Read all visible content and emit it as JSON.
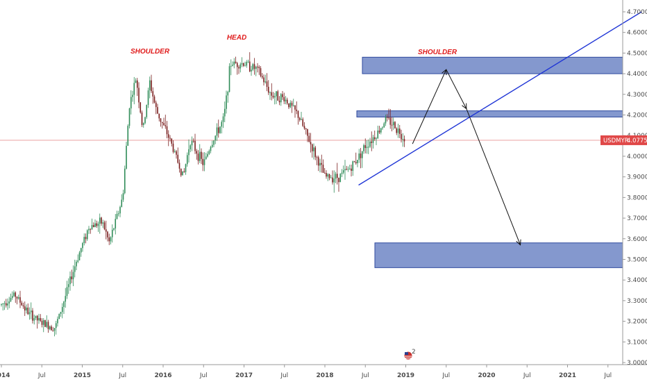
{
  "instrument": "USDMYR",
  "chart_data": {
    "type": "candlestick",
    "title": "",
    "xlabel": "",
    "ylabel": "",
    "ylim": [
      3.0,
      4.7
    ],
    "y_ticks": [
      "3.0000",
      "3.1000",
      "3.2000",
      "3.3000",
      "3.4000",
      "3.5000",
      "3.6000",
      "3.7000",
      "3.8000",
      "3.9000",
      "4.0000",
      "4.1000",
      "4.2000",
      "4.3000",
      "4.4000",
      "4.5000",
      "4.6000",
      "4.7000"
    ],
    "x_ticks": [
      {
        "label": "2014",
        "major": true
      },
      {
        "label": "Jul",
        "major": false
      },
      {
        "label": "2015",
        "major": true
      },
      {
        "label": "Jul",
        "major": false
      },
      {
        "label": "2016",
        "major": true
      },
      {
        "label": "Jul",
        "major": false
      },
      {
        "label": "2017",
        "major": true
      },
      {
        "label": "Jul",
        "major": false
      },
      {
        "label": "2018",
        "major": true
      },
      {
        "label": "Jul",
        "major": false
      },
      {
        "label": "2019",
        "major": true
      },
      {
        "label": "Jul",
        "major": false
      },
      {
        "label": "2020",
        "major": true
      },
      {
        "label": "Jul",
        "major": false
      },
      {
        "label": "2021",
        "major": true
      },
      {
        "label": "Jul",
        "major": false
      }
    ],
    "last_price": {
      "label": "USDMYR",
      "value": "4.0775"
    },
    "price_path": [
      [
        "2014-01",
        3.28
      ],
      [
        "2014-03",
        3.33
      ],
      [
        "2014-05",
        3.24
      ],
      [
        "2014-07",
        3.19
      ],
      [
        "2014-09",
        3.17
      ],
      [
        "2014-10",
        3.27
      ],
      [
        "2014-12",
        3.48
      ],
      [
        "2015-02",
        3.66
      ],
      [
        "2015-04",
        3.68
      ],
      [
        "2015-05",
        3.58
      ],
      [
        "2015-07",
        3.8
      ],
      [
        "2015-08",
        4.25
      ],
      [
        "2015-09",
        4.38
      ],
      [
        "2015-10",
        4.12
      ],
      [
        "2015-11",
        4.36
      ],
      [
        "2015-12",
        4.22
      ],
      [
        "2016-02",
        4.08
      ],
      [
        "2016-04",
        3.9
      ],
      [
        "2016-05",
        4.08
      ],
      [
        "2016-07",
        3.96
      ],
      [
        "2016-08",
        4.05
      ],
      [
        "2016-10",
        4.18
      ],
      [
        "2016-11",
        4.45
      ],
      [
        "2017-01",
        4.45
      ],
      [
        "2017-03",
        4.42
      ],
      [
        "2017-05",
        4.3
      ],
      [
        "2017-07",
        4.28
      ],
      [
        "2017-09",
        4.2
      ],
      [
        "2017-11",
        4.05
      ],
      [
        "2018-01",
        3.9
      ],
      [
        "2018-03",
        3.9
      ],
      [
        "2018-05",
        3.95
      ],
      [
        "2018-07",
        4.05
      ],
      [
        "2018-09",
        4.12
      ],
      [
        "2018-10",
        4.18
      ],
      [
        "2018-11",
        4.16
      ],
      [
        "2019-01",
        4.08
      ]
    ],
    "annotations": [
      {
        "text": "SHOULDER",
        "color": "#e01b1b"
      },
      {
        "text": "HEAD",
        "color": "#e01b1b"
      },
      {
        "text": "SHOULDER",
        "color": "#e01b1b"
      }
    ],
    "zones": [
      {
        "name": "upper-resistance-zone",
        "y_low": 4.4,
        "y_high": 4.48,
        "x_start": "2018-07",
        "x_end": "2021-12",
        "color": "#6f86c6"
      },
      {
        "name": "middle-resistance-zone",
        "y_low": 4.19,
        "y_high": 4.22,
        "x_start": "2018-07",
        "x_end": "2021-12",
        "color": "#6f86c6"
      },
      {
        "name": "target-support-zone",
        "y_low": 3.46,
        "y_high": 3.58,
        "x_start": "2018-12",
        "x_end": "2021-12",
        "color": "#6f86c6"
      }
    ],
    "trendline": {
      "from": [
        "2018-06",
        3.86
      ],
      "to": [
        "2021-12",
        4.7
      ],
      "color": "#1f35d6"
    },
    "projection_path": [
      [
        "2019-02",
        4.06
      ],
      [
        "2019-07",
        4.42
      ],
      [
        "2019-10",
        4.23
      ],
      [
        "2020-06",
        3.57
      ]
    ]
  }
}
